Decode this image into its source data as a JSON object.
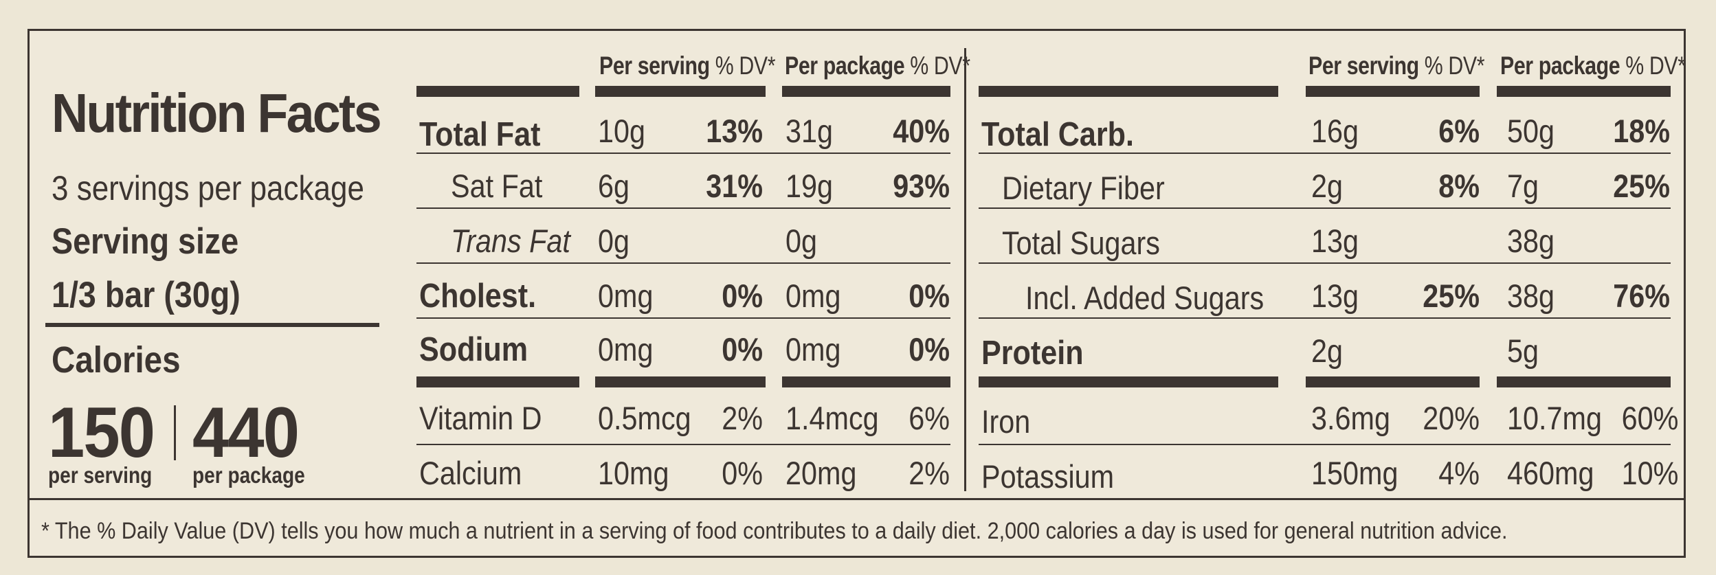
{
  "header": {
    "title": "Nutrition Facts",
    "servings_per_package": "3 servings per package",
    "serving_size_label": "Serving size",
    "serving_size_value": "1/3 bar (30g)"
  },
  "calories": {
    "label": "Calories",
    "per_serving": "150",
    "separator": "|",
    "per_package": "440",
    "per_serving_label": "per serving",
    "per_package_label": "per package"
  },
  "column_headers": {
    "per_serving_bold": "Per serving",
    "per_serving_dv": " % DV*",
    "per_package_bold": "Per package",
    "per_package_dv": " % DV*"
  },
  "left_rows": [
    {
      "name": "Total Fat",
      "serving_amount": "10g",
      "serving_dv": "13%",
      "package_amount": "31g",
      "package_dv": "40%"
    },
    {
      "name": "Sat Fat",
      "serving_amount": "6g",
      "serving_dv": "31%",
      "package_amount": "19g",
      "package_dv": "93%"
    },
    {
      "name": "Trans Fat",
      "serving_amount": "0g",
      "serving_dv": "",
      "package_amount": "0g",
      "package_dv": ""
    },
    {
      "name": "Cholest.",
      "serving_amount": "0mg",
      "serving_dv": "0%",
      "package_amount": "0mg",
      "package_dv": "0%"
    },
    {
      "name": "Sodium",
      "serving_amount": "0mg",
      "serving_dv": "0%",
      "package_amount": "0mg",
      "package_dv": "0%"
    },
    {
      "name": "Vitamin D",
      "serving_amount": "0.5mcg",
      "serving_dv": "2%",
      "package_amount": "1.4mcg",
      "package_dv": "6%"
    },
    {
      "name": "Calcium",
      "serving_amount": "10mg",
      "serving_dv": "0%",
      "package_amount": "20mg",
      "package_dv": "2%"
    }
  ],
  "right_rows": [
    {
      "name": "Total Carb.",
      "serving_amount": "16g",
      "serving_dv": "6%",
      "package_amount": "50g",
      "package_dv": "18%"
    },
    {
      "name": "Dietary Fiber",
      "serving_amount": "2g",
      "serving_dv": "8%",
      "package_amount": "7g",
      "package_dv": "25%"
    },
    {
      "name": "Total Sugars",
      "serving_amount": "13g",
      "serving_dv": "",
      "package_amount": "38g",
      "package_dv": ""
    },
    {
      "name": "Incl. Added Sugars",
      "serving_amount": "13g",
      "serving_dv": "25%",
      "package_amount": "38g",
      "package_dv": "76%"
    },
    {
      "name": "Protein",
      "serving_amount": "2g",
      "serving_dv": "",
      "package_amount": "5g",
      "package_dv": ""
    },
    {
      "name": "Iron",
      "serving_amount": "3.6mg",
      "serving_dv": "20%",
      "package_amount": "10.7mg",
      "package_dv": "60%"
    },
    {
      "name": "Potassium",
      "serving_amount": "150mg",
      "serving_dv": "4%",
      "package_amount": "460mg",
      "package_dv": "10%"
    }
  ],
  "footnote": "* The % Daily Value (DV) tells you how much a nutrient in a serving of food contributes to a daily diet. 2,000 calories a day is used for general nutrition advice.",
  "colors": {
    "ink": "#3c3531",
    "background": "#efe9da"
  }
}
